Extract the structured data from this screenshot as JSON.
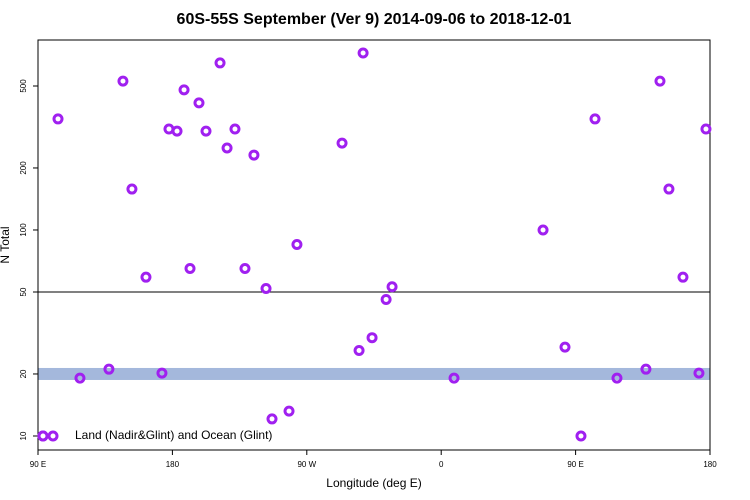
{
  "chart_data": {
    "type": "scatter",
    "title": "60S-55S September (Ver 9)   2014-09-06 to 2018-12-01",
    "xlabel": "Longitude (deg E)",
    "ylabel": "N Total",
    "log_y": true,
    "color": "#a020f0",
    "hline": 50,
    "band": 20,
    "band_color": "#a4b8dc",
    "legend": "bottom-left",
    "xlim": [
      90,
      540
    ],
    "ylim": [
      8.55,
      836
    ],
    "xticks": [
      {
        "value": 90,
        "label": "90 E"
      },
      180,
      {
        "value": 270,
        "label": "90 W"
      },
      {
        "value": 360,
        "label": "0"
      },
      {
        "value": 450,
        "label": "90 E"
      },
      {
        "value": 540,
        "label": "180"
      }
    ],
    "yticks": [
      10,
      20,
      50,
      100,
      200,
      500
    ],
    "series": [
      {
        "name": "Land (Nadir&Glint) and Ocean (Glint)",
        "color": "#a020f0",
        "x": [
          93.3,
          103.4,
          118.1,
          137.5,
          146.9,
          152.9,
          162.3,
          173.0,
          177.7,
          183.1,
          187.8,
          191.8,
          197.8,
          202.5,
          211.9,
          216.6,
          221.9,
          228.6,
          234.6,
          242.7,
          246.7,
          258.1,
          263.4,
          293.6,
          305.0,
          307.7,
          313.7,
          323.1,
          327.1,
          368.6,
          428.2,
          442.9,
          453.6,
          463.0,
          477.7,
          497.1,
          506.5,
          512.5,
          521.9,
          532.6,
          537.3
        ],
        "values": [
          10,
          346,
          19.1,
          21.1,
          528,
          158,
          59,
          20.2,
          309,
          302,
          479,
          65,
          414,
          302,
          647,
          250,
          309,
          65,
          231,
          52,
          12.1,
          13.2,
          85,
          264,
          26,
          723,
          30,
          46,
          53,
          19.1,
          100,
          27,
          10,
          346,
          19.1,
          21.1,
          528,
          158,
          59,
          20.2,
          309
        ]
      }
    ]
  }
}
